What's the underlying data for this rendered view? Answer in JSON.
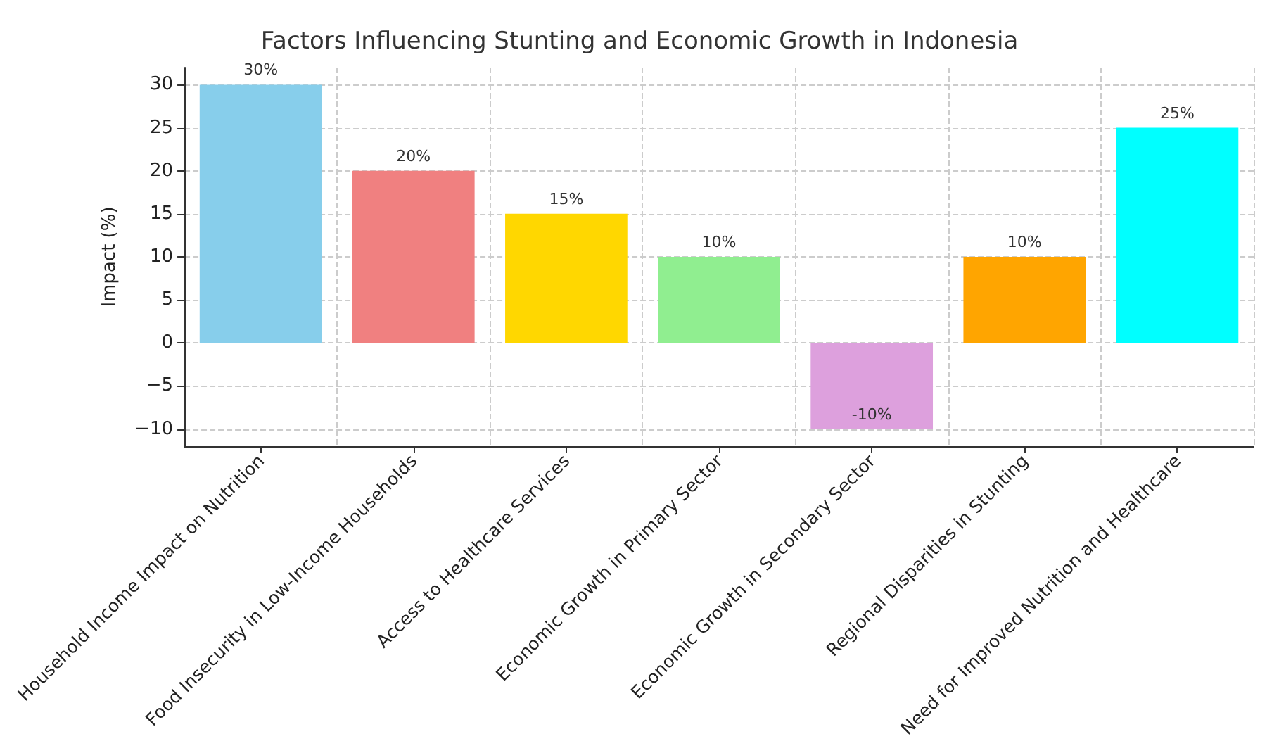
{
  "chart_data": {
    "type": "bar",
    "title": "Factors Influencing Stunting and Economic Growth in Indonesia",
    "ylabel": "Impact (%)",
    "categories": [
      "Household Income Impact on Nutrition",
      "Food Insecurity in Low-Income Households",
      "Access to Healthcare Services",
      "Economic Growth in Primary Sector",
      "Economic Growth in Secondary Sector",
      "Regional Disparities in Stunting",
      "Need for Improved Nutrition and Healthcare"
    ],
    "values": [
      30,
      20,
      15,
      10,
      -10,
      10,
      25
    ],
    "colors": [
      "#87ceeb",
      "#f08080",
      "#ffd700",
      "#90ee90",
      "#dda0dd",
      "#ffa500",
      "#00ffff"
    ],
    "value_labels": [
      "30%",
      "20%",
      "15%",
      "10%",
      "-10%",
      "10%",
      "25%"
    ],
    "ylim": [
      -12,
      32
    ],
    "yticks": [
      -10,
      -5,
      0,
      5,
      10,
      15,
      20,
      25,
      30
    ],
    "grid": true
  }
}
